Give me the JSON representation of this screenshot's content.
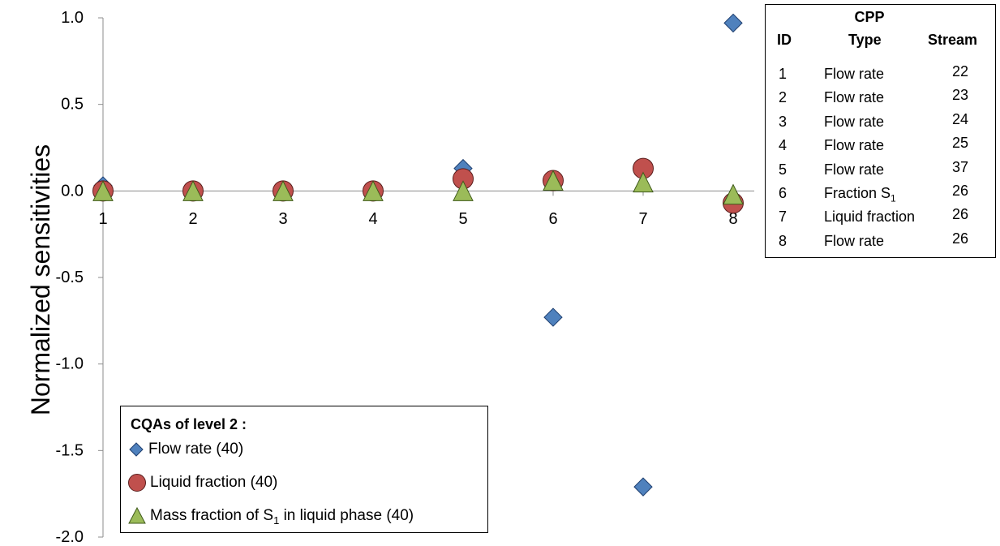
{
  "chart_data": {
    "type": "scatter",
    "ylabel": "Normalized sensitivities",
    "xlabel": "",
    "x": [
      1,
      2,
      3,
      4,
      5,
      6,
      7,
      8
    ],
    "x_tick_labels": [
      "1",
      "2",
      "3",
      "4",
      "5",
      "6",
      "7",
      "8"
    ],
    "ylim": [
      -2.0,
      1.0
    ],
    "y_tick_labels": [
      "1.0",
      "0.5",
      "0.0",
      "-0.5",
      "-1.0",
      "-1.5",
      "-2.0"
    ],
    "grid": false,
    "legend_placement": "bottom-left",
    "legend_title": "CQAs of level 2 :",
    "series": [
      {
        "name": "Flow rate (40)",
        "marker": "diamond",
        "color": "#4F81BD",
        "values": [
          0.03,
          0.0,
          0.0,
          0.0,
          0.13,
          -0.73,
          -1.71,
          0.97
        ]
      },
      {
        "name": "Liquid fraction (40)",
        "marker": "circle",
        "color": "#C0504D",
        "values": [
          0.0,
          0.0,
          0.0,
          0.0,
          0.07,
          0.06,
          0.13,
          -0.07
        ]
      },
      {
        "name_prefix": "Mass fraction of S",
        "name_sub": "1",
        "name_suffix": " in liquid phase (40)",
        "marker": "triangle",
        "color": "#9BBB59",
        "values": [
          0.0,
          0.0,
          0.0,
          0.0,
          0.0,
          0.06,
          0.05,
          -0.02
        ]
      }
    ]
  },
  "cpp_table": {
    "header_top": "CPP",
    "col_id": "ID",
    "col_type": "Type",
    "col_stream": "Stream",
    "rows": [
      {
        "id": "1",
        "type": "Flow rate",
        "stream": "22"
      },
      {
        "id": "2",
        "type": "Flow rate",
        "stream": "23"
      },
      {
        "id": "3",
        "type": "Flow rate",
        "stream": "24"
      },
      {
        "id": "4",
        "type": "Flow rate",
        "stream": "25"
      },
      {
        "id": "5",
        "type": "Flow rate",
        "stream": "37"
      },
      {
        "id": "6",
        "type": "Fraction S",
        "type_sub": "1",
        "stream": "26"
      },
      {
        "id": "7",
        "type": "Liquid fraction",
        "stream": "26"
      },
      {
        "id": "8",
        "type": "Flow rate",
        "stream": "26"
      }
    ]
  }
}
